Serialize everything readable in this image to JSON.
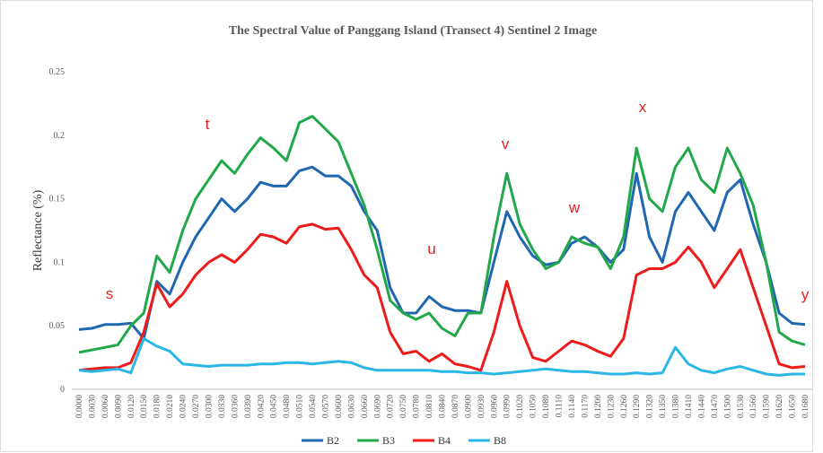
{
  "chart_data": {
    "type": "line",
    "title": "The Spectral Value of Panggang Island (Transect 4) Sentinel 2 Image",
    "y_label": "Reflectance (%)",
    "categories": [
      "0.0000",
      "0.0030",
      "0.0060",
      "0.0090",
      "0.0120",
      "0.0150",
      "0.0180",
      "0.0210",
      "0.0240",
      "0.0270",
      "0.0300",
      "0.0330",
      "0.0360",
      "0.0390",
      "0.0420",
      "0.0450",
      "0.0480",
      "0.0510",
      "0.0540",
      "0.0570",
      "0.0600",
      "0.0630",
      "0.0660",
      "0.0690",
      "0.0720",
      "0.0750",
      "0.0780",
      "0.0810",
      "0.0840",
      "0.0870",
      "0.0900",
      "0.0930",
      "0.0960",
      "0.0990",
      "0.1020",
      "0.1050",
      "0.1080",
      "0.1110",
      "0.1140",
      "0.1170",
      "0.1200",
      "0.1230",
      "0.1260",
      "0.1290",
      "0.1320",
      "0.1350",
      "0.1380",
      "0.1410",
      "0.1440",
      "0.1470",
      "0.1500",
      "0.1530",
      "0.1560",
      "0.1590",
      "0.1620",
      "0.1650",
      "0.1680"
    ],
    "series": [
      {
        "name": "B2",
        "color": "#1f67b1",
        "values": [
          0.047,
          0.048,
          0.051,
          0.051,
          0.052,
          0.04,
          0.085,
          0.075,
          0.1,
          0.12,
          0.135,
          0.15,
          0.14,
          0.15,
          0.163,
          0.16,
          0.16,
          0.172,
          0.175,
          0.168,
          0.168,
          0.16,
          0.14,
          0.125,
          0.08,
          0.06,
          0.06,
          0.073,
          0.065,
          0.062,
          0.062,
          0.06,
          0.1,
          0.14,
          0.12,
          0.105,
          0.098,
          0.1,
          0.115,
          0.12,
          0.112,
          0.1,
          0.11,
          0.17,
          0.12,
          0.1,
          0.14,
          0.155,
          0.14,
          0.125,
          0.155,
          0.165,
          0.13,
          0.1,
          0.06,
          0.052,
          0.051
        ]
      },
      {
        "name": "B3",
        "color": "#22a84a",
        "values": [
          0.029,
          0.031,
          0.033,
          0.035,
          0.05,
          0.06,
          0.105,
          0.092,
          0.125,
          0.15,
          0.165,
          0.18,
          0.17,
          0.185,
          0.198,
          0.19,
          0.18,
          0.21,
          0.215,
          0.205,
          0.195,
          0.17,
          0.145,
          0.11,
          0.07,
          0.06,
          0.055,
          0.06,
          0.048,
          0.042,
          0.06,
          0.06,
          0.12,
          0.17,
          0.13,
          0.11,
          0.095,
          0.1,
          0.12,
          0.115,
          0.112,
          0.095,
          0.12,
          0.19,
          0.15,
          0.14,
          0.175,
          0.19,
          0.165,
          0.155,
          0.19,
          0.17,
          0.145,
          0.1,
          0.045,
          0.038,
          0.035
        ]
      },
      {
        "name": "B4",
        "color": "#ee1b1b",
        "values": [
          0.015,
          0.016,
          0.017,
          0.017,
          0.021,
          0.045,
          0.083,
          0.065,
          0.075,
          0.09,
          0.1,
          0.106,
          0.1,
          0.11,
          0.122,
          0.12,
          0.115,
          0.128,
          0.13,
          0.126,
          0.127,
          0.11,
          0.09,
          0.08,
          0.045,
          0.028,
          0.03,
          0.022,
          0.028,
          0.02,
          0.018,
          0.015,
          0.045,
          0.085,
          0.05,
          0.025,
          0.022,
          0.03,
          0.038,
          0.035,
          0.03,
          0.026,
          0.04,
          0.09,
          0.095,
          0.095,
          0.1,
          0.112,
          0.1,
          0.08,
          0.095,
          0.11,
          0.08,
          0.05,
          0.02,
          0.017,
          0.018
        ]
      },
      {
        "name": "B8",
        "color": "#2bb6e8",
        "values": [
          0.015,
          0.014,
          0.015,
          0.016,
          0.013,
          0.04,
          0.034,
          0.03,
          0.02,
          0.019,
          0.018,
          0.019,
          0.019,
          0.019,
          0.02,
          0.02,
          0.021,
          0.021,
          0.02,
          0.021,
          0.022,
          0.021,
          0.017,
          0.015,
          0.015,
          0.015,
          0.015,
          0.015,
          0.014,
          0.014,
          0.013,
          0.013,
          0.012,
          0.013,
          0.014,
          0.015,
          0.016,
          0.015,
          0.014,
          0.014,
          0.013,
          0.012,
          0.012,
          0.013,
          0.012,
          0.013,
          0.033,
          0.02,
          0.015,
          0.013,
          0.016,
          0.018,
          0.015,
          0.012,
          0.011,
          0.012,
          0.012
        ]
      }
    ],
    "annotations": [
      "s",
      "t",
      "u",
      "v",
      "w",
      "x",
      "y"
    ],
    "ylim": [
      0,
      0.25
    ],
    "yticks": [
      0,
      0.05,
      0.1,
      0.15,
      0.2,
      0.25
    ],
    "grid": false,
    "legend": "bottom"
  }
}
